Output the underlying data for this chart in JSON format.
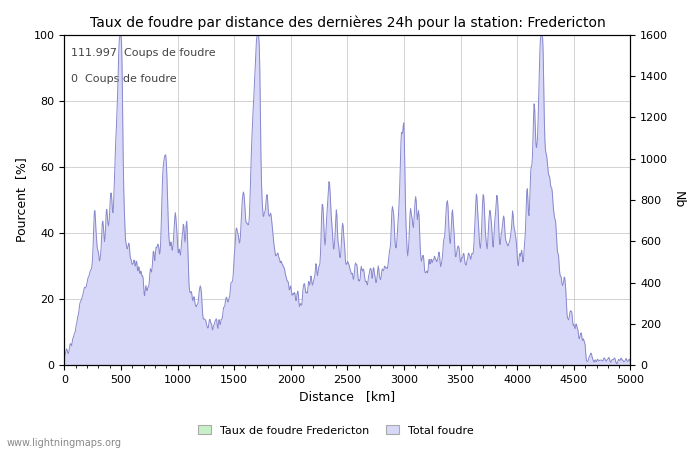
{
  "title": "Taux de foudre par distance des dernières 24h pour la station: Fredericton",
  "xlabel": "Distance   [km]",
  "ylabel_left": "Pourcent  [%]",
  "ylabel_right": "Nb",
  "annotation_line1": "111.997  Coups de foudre",
  "annotation_line2": "0  Coups de foudre",
  "xlim": [
    0,
    5000
  ],
  "ylim_left": [
    0,
    100
  ],
  "ylim_right": [
    0,
    1600
  ],
  "xticks": [
    0,
    500,
    1000,
    1500,
    2000,
    2500,
    3000,
    3500,
    4000,
    4500,
    5000
  ],
  "yticks_left": [
    0,
    20,
    40,
    60,
    80,
    100
  ],
  "yticks_right": [
    0,
    200,
    400,
    600,
    800,
    1000,
    1200,
    1400,
    1600
  ],
  "legend_label1": "Taux de foudre Fredericton",
  "legend_label2": "Total foudre",
  "fill_color_green": "#c8f0c8",
  "fill_color_blue": "#d8d8f8",
  "line_color": "#8888cc",
  "background_color": "#ffffff",
  "grid_color": "#c0c0c0",
  "watermark": "www.lightningmaps.org",
  "title_fontsize": 10,
  "axis_fontsize": 9,
  "tick_fontsize": 8,
  "watermark_fontsize": 7
}
